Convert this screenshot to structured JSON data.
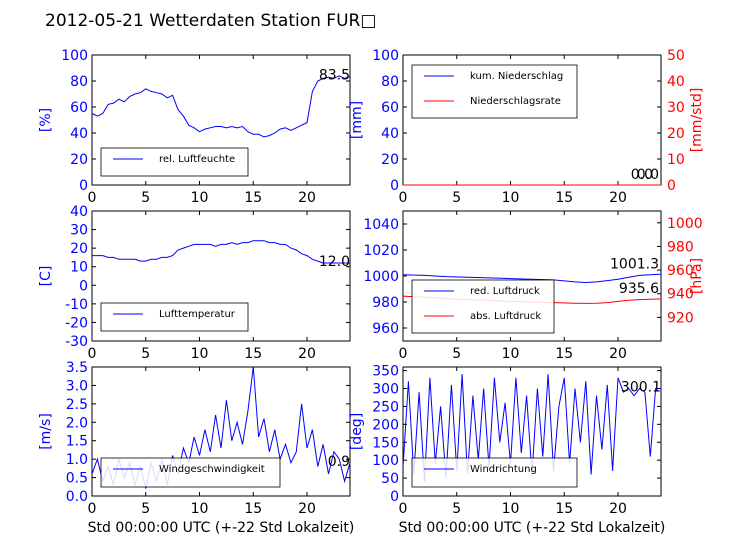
{
  "title": "2012-05-21 Wetterdaten Station FUR□",
  "colors": {
    "blue": "#0000ff",
    "red": "#ff0000",
    "black": "#000000"
  },
  "chart_data": [
    {
      "type": "line",
      "ylabel": "[%]",
      "xlim": [
        0,
        24
      ],
      "ylim": [
        0,
        100
      ],
      "xticks": [
        0,
        5,
        10,
        15,
        20
      ],
      "yticks": [
        0,
        20,
        40,
        60,
        80,
        100
      ],
      "legend": {
        "placement": "lower-left"
      },
      "series": [
        {
          "name": "rel. Luftfeuchte",
          "color": "#0000ff",
          "x": [
            0,
            0.5,
            1,
            1.5,
            2,
            2.5,
            3,
            3.5,
            4,
            4.5,
            5,
            5.5,
            6,
            6.5,
            7,
            7.5,
            8,
            8.5,
            9,
            9.5,
            10,
            10.5,
            11,
            11.5,
            12,
            12.5,
            13,
            13.5,
            14,
            14.5,
            15,
            15.5,
            16,
            16.5,
            17,
            17.5,
            18,
            18.5,
            19,
            19.5,
            20,
            20.5,
            21,
            21.5,
            22,
            22.5,
            23,
            23.5,
            24
          ],
          "y": [
            55,
            53,
            55,
            62,
            63,
            66,
            64,
            68,
            70,
            71,
            74,
            72,
            71,
            70,
            67,
            69,
            58,
            53,
            46,
            44,
            41,
            43,
            44,
            45,
            45,
            44,
            45,
            44,
            45,
            41,
            39,
            39,
            37,
            38,
            40,
            43,
            44,
            42,
            44,
            46,
            48,
            72,
            80,
            82,
            83,
            82,
            84,
            82,
            83.5
          ]
        }
      ],
      "last_value": "83.5"
    },
    {
      "type": "line",
      "ylabel": "[mm]",
      "y2label": "[mm/std]",
      "xlim": [
        0,
        24
      ],
      "ylim": [
        0,
        100
      ],
      "y2lim": [
        0,
        50
      ],
      "xticks": [
        0,
        5,
        10,
        15,
        20
      ],
      "yticks": [
        0,
        20,
        40,
        60,
        80,
        100
      ],
      "y2ticks": [
        0,
        10,
        20,
        30,
        40,
        50
      ],
      "legend": {
        "placement": "upper-left"
      },
      "series": [
        {
          "name": "kum. Niederschlag",
          "color": "#0000ff",
          "axis": "left",
          "x": [
            0,
            24
          ],
          "y": [
            0,
            0
          ]
        },
        {
          "name": "Niederschlagsrate",
          "color": "#ff0000",
          "axis": "right",
          "x": [
            0,
            24
          ],
          "y": [
            0,
            0
          ]
        }
      ],
      "last_values": [
        "0.0",
        "0.0"
      ]
    },
    {
      "type": "line",
      "ylabel": "[C]",
      "xlim": [
        0,
        24
      ],
      "ylim": [
        -30,
        40
      ],
      "xticks": [
        0,
        5,
        10,
        15,
        20
      ],
      "yticks": [
        -30,
        -20,
        -10,
        0,
        10,
        20,
        30,
        40
      ],
      "legend": {
        "placement": "lower-left"
      },
      "series": [
        {
          "name": "Lufttemperatur",
          "color": "#0000ff",
          "x": [
            0,
            0.5,
            1,
            1.5,
            2,
            2.5,
            3,
            3.5,
            4,
            4.5,
            5,
            5.5,
            6,
            6.5,
            7,
            7.5,
            8,
            8.5,
            9,
            9.5,
            10,
            10.5,
            11,
            11.5,
            12,
            12.5,
            13,
            13.5,
            14,
            14.5,
            15,
            15.5,
            16,
            16.5,
            17,
            17.5,
            18,
            18.5,
            19,
            19.5,
            20,
            20.5,
            21,
            21.5,
            22,
            22.5,
            23,
            23.5,
            24
          ],
          "y": [
            16,
            16,
            16,
            15,
            15,
            14,
            14,
            14,
            14,
            13,
            13,
            14,
            14,
            15,
            15,
            16,
            19,
            20,
            21,
            22,
            22,
            22,
            22,
            21,
            22,
            22,
            23,
            22,
            23,
            23,
            24,
            24,
            24,
            23,
            23,
            22,
            22,
            20,
            19,
            17,
            16,
            14,
            13,
            12,
            12,
            12,
            12,
            12,
            12
          ]
        }
      ],
      "last_value": "12.0"
    },
    {
      "type": "line",
      "ylabel": "",
      "y2label": "[hPa]",
      "xlim": [
        0,
        24
      ],
      "ylim": [
        950,
        1050
      ],
      "y2lim": [
        900,
        1010
      ],
      "xticks": [
        0,
        5,
        10,
        15,
        20
      ],
      "yticks": [
        960,
        980,
        1000,
        1020,
        1040
      ],
      "y2ticks": [
        920,
        940,
        960,
        980,
        1000
      ],
      "legend": {
        "placement": "lower-left"
      },
      "series": [
        {
          "name": "red. Luftdruck",
          "color": "#0000ff",
          "axis": "left",
          "x": [
            0,
            2,
            4,
            6,
            8,
            10,
            12,
            14,
            16,
            17,
            18,
            19,
            20,
            21,
            22,
            23,
            24
          ],
          "y": [
            1001,
            1000.5,
            999.5,
            999,
            998.5,
            998,
            997.5,
            997,
            995.5,
            995,
            995.5,
            996.5,
            997.5,
            999,
            1000.5,
            1001,
            1001.3
          ]
        },
        {
          "name": "abs. Luftdruck",
          "color": "#ff0000",
          "axis": "right",
          "x": [
            0,
            2,
            4,
            6,
            8,
            10,
            12,
            14,
            16,
            17,
            18,
            19,
            20,
            21,
            22,
            23,
            24
          ],
          "y": [
            938,
            937,
            936,
            935,
            934.5,
            933.5,
            933,
            932.5,
            932,
            931.8,
            932,
            932.5,
            933.5,
            934.5,
            935,
            935.4,
            935.6
          ]
        }
      ],
      "last_values": [
        "1001.3",
        "935.6"
      ]
    },
    {
      "type": "line",
      "ylabel": "[m/s]",
      "xlabel": "Std 00:00:00 UTC (+-22 Std Lokalzeit)",
      "xlim": [
        0,
        24
      ],
      "ylim": [
        0,
        3.5
      ],
      "xticks": [
        0,
        5,
        10,
        15,
        20
      ],
      "yticks": [
        0.0,
        0.5,
        1.0,
        1.5,
        2.0,
        2.5,
        3.0,
        3.5
      ],
      "legend": {
        "placement": "lower-center"
      },
      "series": [
        {
          "name": "Windgeschwindigkeit",
          "color": "#0000ff",
          "x": [
            0,
            0.5,
            1,
            1.5,
            2,
            2.5,
            3,
            3.5,
            4,
            4.5,
            5,
            5.5,
            6,
            6.5,
            7,
            7.5,
            8,
            8.5,
            9,
            9.5,
            10,
            10.5,
            11,
            11.5,
            12,
            12.5,
            13,
            13.5,
            14,
            14.5,
            15,
            15.5,
            16,
            16.5,
            17,
            17.5,
            18,
            18.5,
            19,
            19.5,
            20,
            20.5,
            21,
            21.5,
            22,
            22.5,
            23,
            23.5,
            24
          ],
          "y": [
            0.6,
            1.0,
            0.4,
            0.8,
            0.3,
            1.0,
            0.5,
            0.9,
            0.3,
            0.8,
            0.2,
            0.9,
            0.4,
            1.0,
            0.3,
            1.1,
            0.6,
            1.3,
            0.9,
            1.6,
            1.1,
            1.8,
            1.2,
            2.2,
            1.3,
            2.6,
            1.5,
            2.0,
            1.4,
            2.3,
            3.5,
            1.6,
            2.1,
            1.2,
            1.8,
            1.0,
            1.4,
            0.9,
            1.2,
            2.5,
            1.3,
            1.8,
            0.8,
            1.4,
            0.6,
            1.2,
            1.0,
            0.4,
            0.9
          ]
        }
      ],
      "last_value": "0.9"
    },
    {
      "type": "line",
      "ylabel": "[deg]",
      "xlabel": "Std 00:00:00 UTC (+-22 Std Lokalzeit)",
      "xlim": [
        0,
        24
      ],
      "ylim": [
        0,
        360
      ],
      "xticks": [
        0,
        5,
        10,
        15,
        20
      ],
      "yticks": [
        0,
        50,
        100,
        150,
        200,
        250,
        300,
        350
      ],
      "legend": {
        "placement": "lower-center"
      },
      "series": [
        {
          "name": "Windrichtung",
          "color": "#0000ff",
          "x": [
            0,
            0.5,
            1,
            1.5,
            2,
            2.5,
            3,
            3.5,
            4,
            4.5,
            5,
            5.5,
            6,
            6.5,
            7,
            7.5,
            8,
            8.5,
            9,
            9.5,
            10,
            10.5,
            11,
            11.5,
            12,
            12.5,
            13,
            13.5,
            14,
            14.5,
            15,
            15.5,
            16,
            16.5,
            17,
            17.5,
            18,
            18.5,
            19,
            19.5,
            20,
            20.5,
            21,
            21.5,
            22,
            22.5,
            23,
            23.5,
            24
          ],
          "y": [
            80,
            320,
            60,
            290,
            40,
            330,
            90,
            250,
            50,
            310,
            70,
            340,
            60,
            280,
            100,
            300,
            80,
            330,
            150,
            260,
            90,
            330,
            120,
            280,
            60,
            300,
            110,
            340,
            70,
            250,
            330,
            90,
            300,
            150,
            320,
            60,
            280,
            130,
            310,
            70,
            330,
            290,
            300,
            280,
            300,
            290,
            110,
            300,
            300.1
          ]
        }
      ],
      "last_value": "300.1"
    }
  ]
}
